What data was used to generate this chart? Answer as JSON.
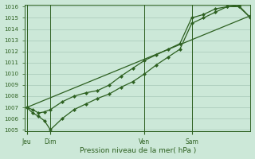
{
  "title": "Pression niveau de la mer( hPa )",
  "bg_color": "#cce8d8",
  "plot_bg_color": "#cce8d8",
  "line_color": "#2d6020",
  "grid_color": "#a8c8b8",
  "tick_color": "#2d6020",
  "ylim": [
    1005,
    1016
  ],
  "yticks": [
    1005,
    1006,
    1007,
    1008,
    1009,
    1010,
    1011,
    1012,
    1013,
    1014,
    1015,
    1016
  ],
  "xtick_labels": [
    "Jeu",
    "Dim",
    "Ven",
    "Sam"
  ],
  "xtick_positions": [
    0,
    12,
    60,
    84
  ],
  "vline_positions": [
    0,
    12,
    60,
    84
  ],
  "xlim": [
    -1,
    114
  ],
  "series1": {
    "x": [
      0,
      3,
      6,
      9,
      12,
      18,
      24,
      30,
      36,
      42,
      48,
      54,
      60,
      66,
      72,
      78,
      84,
      90,
      96,
      102,
      108,
      114
    ],
    "y": [
      1007.0,
      1006.8,
      1006.5,
      1006.6,
      1006.8,
      1007.5,
      1008.0,
      1008.3,
      1008.5,
      1009.0,
      1009.8,
      1010.5,
      1011.2,
      1011.7,
      1012.2,
      1012.7,
      1015.0,
      1015.3,
      1015.8,
      1016.0,
      1016.1,
      1015.0
    ]
  },
  "series2": {
    "x": [
      0,
      3,
      6,
      9,
      12,
      18,
      24,
      30,
      36,
      42,
      48,
      54,
      60,
      66,
      72,
      78,
      84,
      90,
      96,
      102,
      108,
      114
    ],
    "y": [
      1007.0,
      1006.5,
      1006.2,
      1005.8,
      1005.0,
      1006.0,
      1006.8,
      1007.3,
      1007.8,
      1008.2,
      1008.8,
      1009.3,
      1010.0,
      1010.8,
      1011.5,
      1012.2,
      1014.5,
      1015.0,
      1015.5,
      1016.0,
      1016.0,
      1015.0
    ]
  },
  "series3": {
    "x": [
      0,
      114
    ],
    "y": [
      1007.0,
      1015.2
    ]
  }
}
